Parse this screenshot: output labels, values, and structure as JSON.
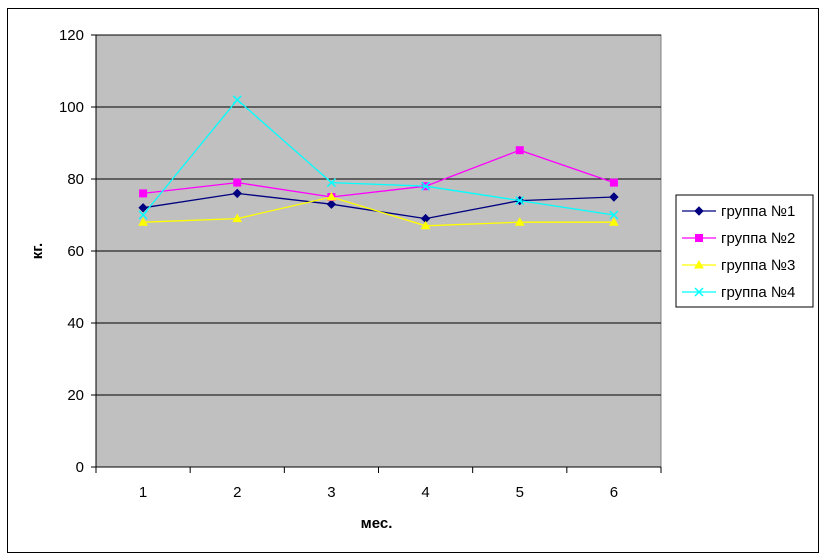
{
  "chart_data": {
    "type": "line",
    "title": "",
    "xlabel": "мес.",
    "ylabel": "кг.",
    "categories": [
      "1",
      "2",
      "3",
      "4",
      "5",
      "6"
    ],
    "ylim": [
      0,
      120
    ],
    "yticks": [
      0,
      20,
      40,
      60,
      80,
      100,
      120
    ],
    "grid": true,
    "plot_background": "#C0C0C0",
    "legend_position": "right",
    "series": [
      {
        "name": "группа №1",
        "values": [
          72,
          76,
          73,
          69,
          74,
          75
        ],
        "color": "#000080",
        "marker": "diamond"
      },
      {
        "name": "группа №2",
        "values": [
          76,
          79,
          75,
          78,
          88,
          79
        ],
        "color": "#FF00FF",
        "marker": "square"
      },
      {
        "name": "группа №3",
        "values": [
          68,
          69,
          75,
          67,
          68,
          68
        ],
        "color": "#FFFF00",
        "marker": "triangle"
      },
      {
        "name": "группа №4",
        "values": [
          70,
          102,
          79,
          78,
          74,
          70
        ],
        "color": "#00FFFF",
        "marker": "x"
      }
    ]
  }
}
